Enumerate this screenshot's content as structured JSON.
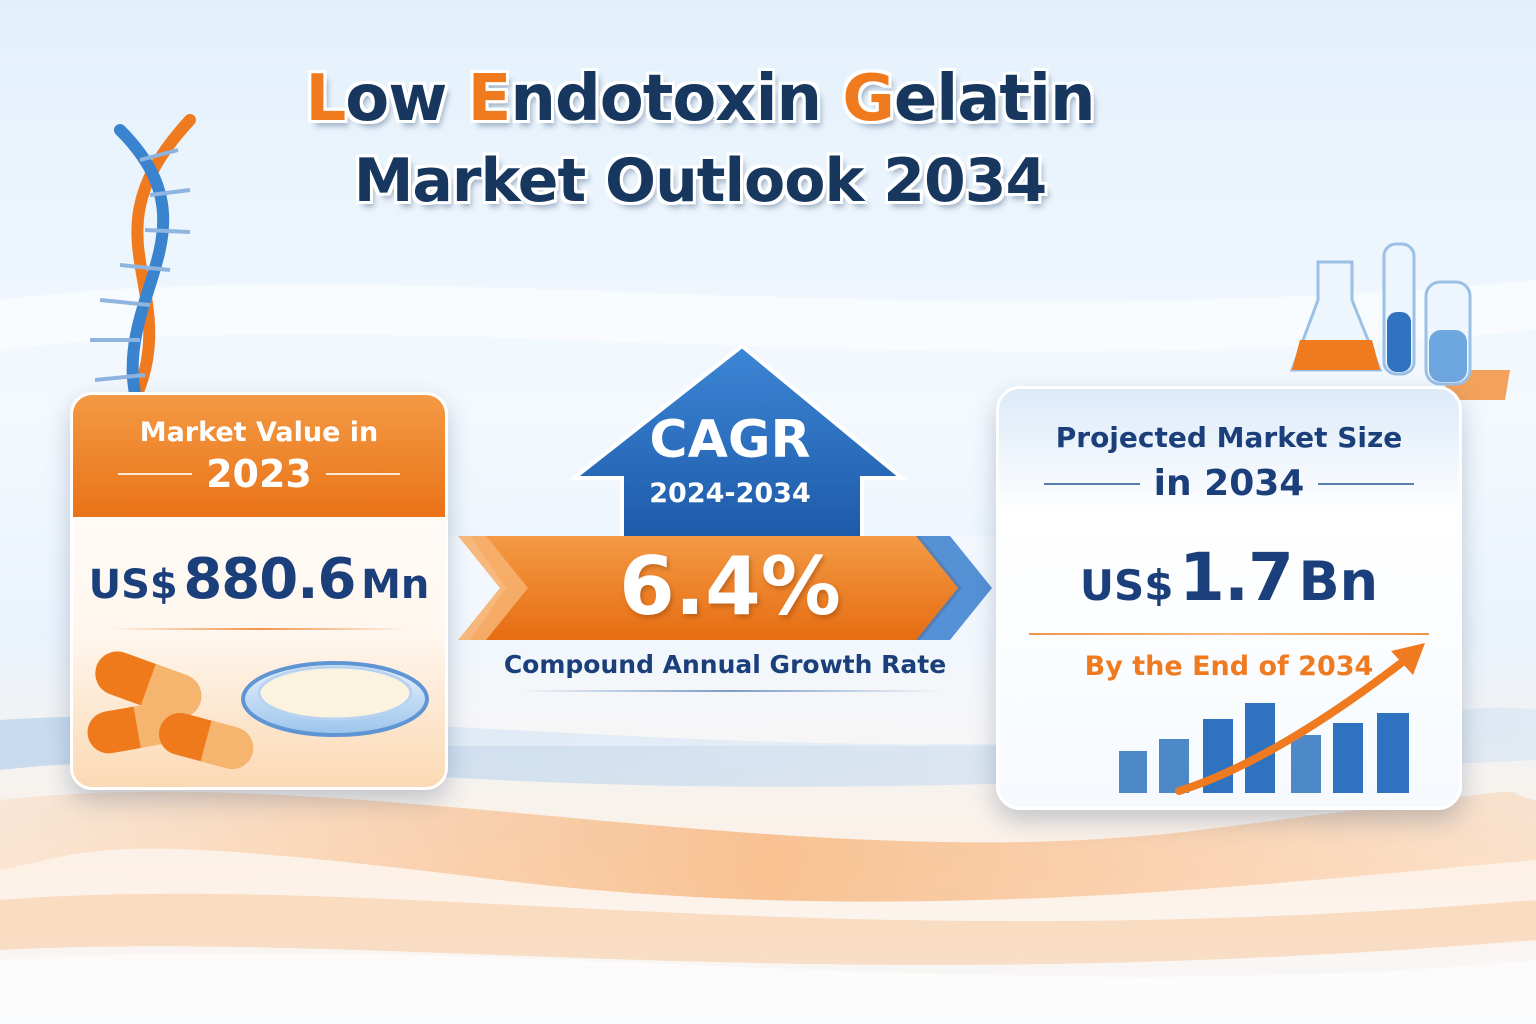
{
  "title": {
    "line1_parts": [
      {
        "text": "L",
        "accent": true
      },
      {
        "text": "ow ",
        "accent": false
      },
      {
        "text": "E",
        "accent": true
      },
      {
        "text": "ndotoxin ",
        "accent": false
      },
      {
        "text": "G",
        "accent": true
      },
      {
        "text": "elatin",
        "accent": false
      }
    ],
    "line2": "Market Outlook 2034"
  },
  "market_value": {
    "label": "Market Value in",
    "year": "2023",
    "currency": "US$",
    "amount": "880.6",
    "unit": "Mn"
  },
  "cagr": {
    "title": "CAGR",
    "period": "2024-2034",
    "value": "6.4%",
    "label": "Compound Annual Growth Rate"
  },
  "projected": {
    "label": "Projected Market Size",
    "year_text": "in 2034",
    "currency": "US$",
    "amount": "1.7",
    "unit": "Bn",
    "footer": "By the End of 2034"
  },
  "colors": {
    "orange": "#ea7318",
    "navy": "#1b3f7a",
    "blue": "#2f73c0"
  },
  "decor_icons": [
    "dna-helix-icon",
    "capsule-pills-icon",
    "petri-dish-icon",
    "lab-glassware-icon",
    "growth-bar-chart-icon"
  ]
}
